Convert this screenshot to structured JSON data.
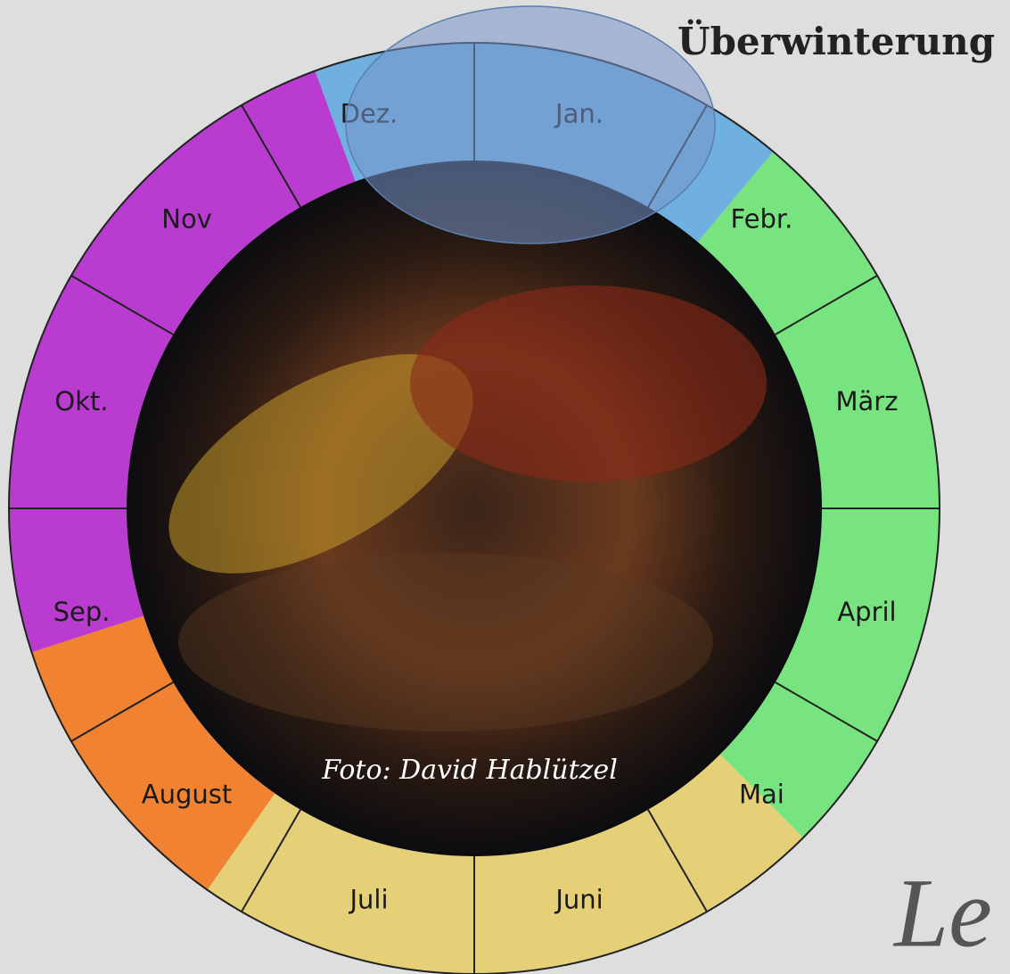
{
  "title": "Überwinterung",
  "months": [
    "Jan.",
    "Febr.",
    "März",
    "April",
    "Mai",
    "Juni",
    "Juli",
    "August",
    "Sep.",
    "Okt.",
    "Nov",
    "Dez."
  ],
  "photo_credit": "Foto: David Hablützel",
  "footer_fragment": "Le"
}
